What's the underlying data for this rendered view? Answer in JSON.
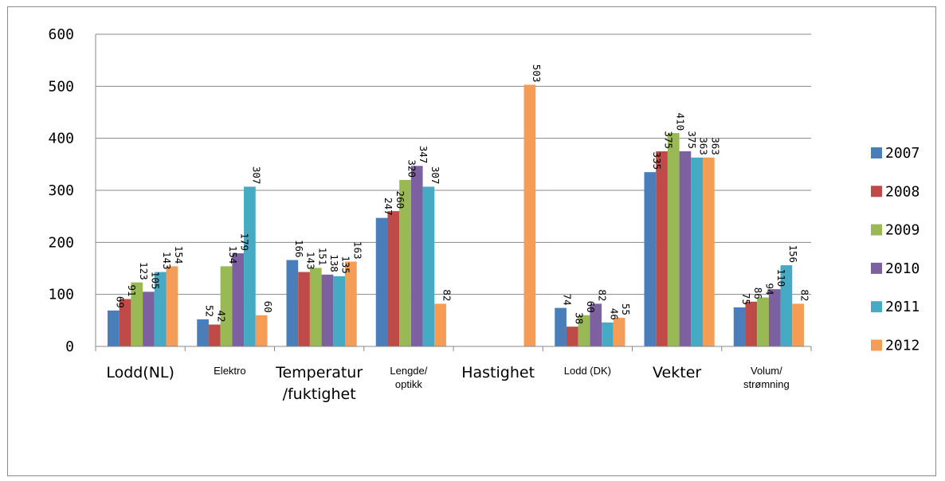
{
  "chart_data": {
    "type": "bar",
    "title": "",
    "xlabel": "",
    "ylabel": "",
    "ylim": [
      0,
      600
    ],
    "yticks": [
      "0",
      "100",
      "200",
      "300",
      "400",
      "500",
      "600"
    ],
    "grid": true,
    "legend_position": "right",
    "categories": [
      {
        "lines": [
          "Lodd(NL)"
        ],
        "style": "big"
      },
      {
        "lines": [
          "Elektro"
        ],
        "style": "small"
      },
      {
        "lines": [
          "Temperatur",
          "/fuktighet"
        ],
        "style": "big"
      },
      {
        "lines": [
          "Lengde/",
          "optikk"
        ],
        "style": "small"
      },
      {
        "lines": [
          "Hastighet"
        ],
        "style": "big"
      },
      {
        "lines": [
          "Lodd (DK)"
        ],
        "style": "small"
      },
      {
        "lines": [
          "Vekter"
        ],
        "style": "big"
      },
      {
        "lines": [
          "Volum/",
          "strømning"
        ],
        "style": "small"
      }
    ],
    "series": [
      {
        "name": "2007",
        "color": "#4a7ebb",
        "values": [
          69,
          52,
          166,
          247,
          null,
          74,
          335,
          75
        ]
      },
      {
        "name": "2008",
        "color": "#be4b48",
        "values": [
          91,
          42,
          143,
          260,
          null,
          38,
          375,
          86
        ]
      },
      {
        "name": "2009",
        "color": "#98b954",
        "values": [
          123,
          154,
          151,
          320,
          null,
          60,
          410,
          94
        ]
      },
      {
        "name": "2010",
        "color": "#7d60a0",
        "values": [
          105,
          179,
          138,
          347,
          null,
          82,
          375,
          110
        ]
      },
      {
        "name": "2011",
        "color": "#46aac5",
        "values": [
          143,
          307,
          135,
          307,
          null,
          46,
          363,
          156
        ]
      },
      {
        "name": "2012",
        "color": "#f59d56",
        "values": [
          154,
          60,
          163,
          82,
          503,
          55,
          363,
          82
        ]
      }
    ]
  }
}
